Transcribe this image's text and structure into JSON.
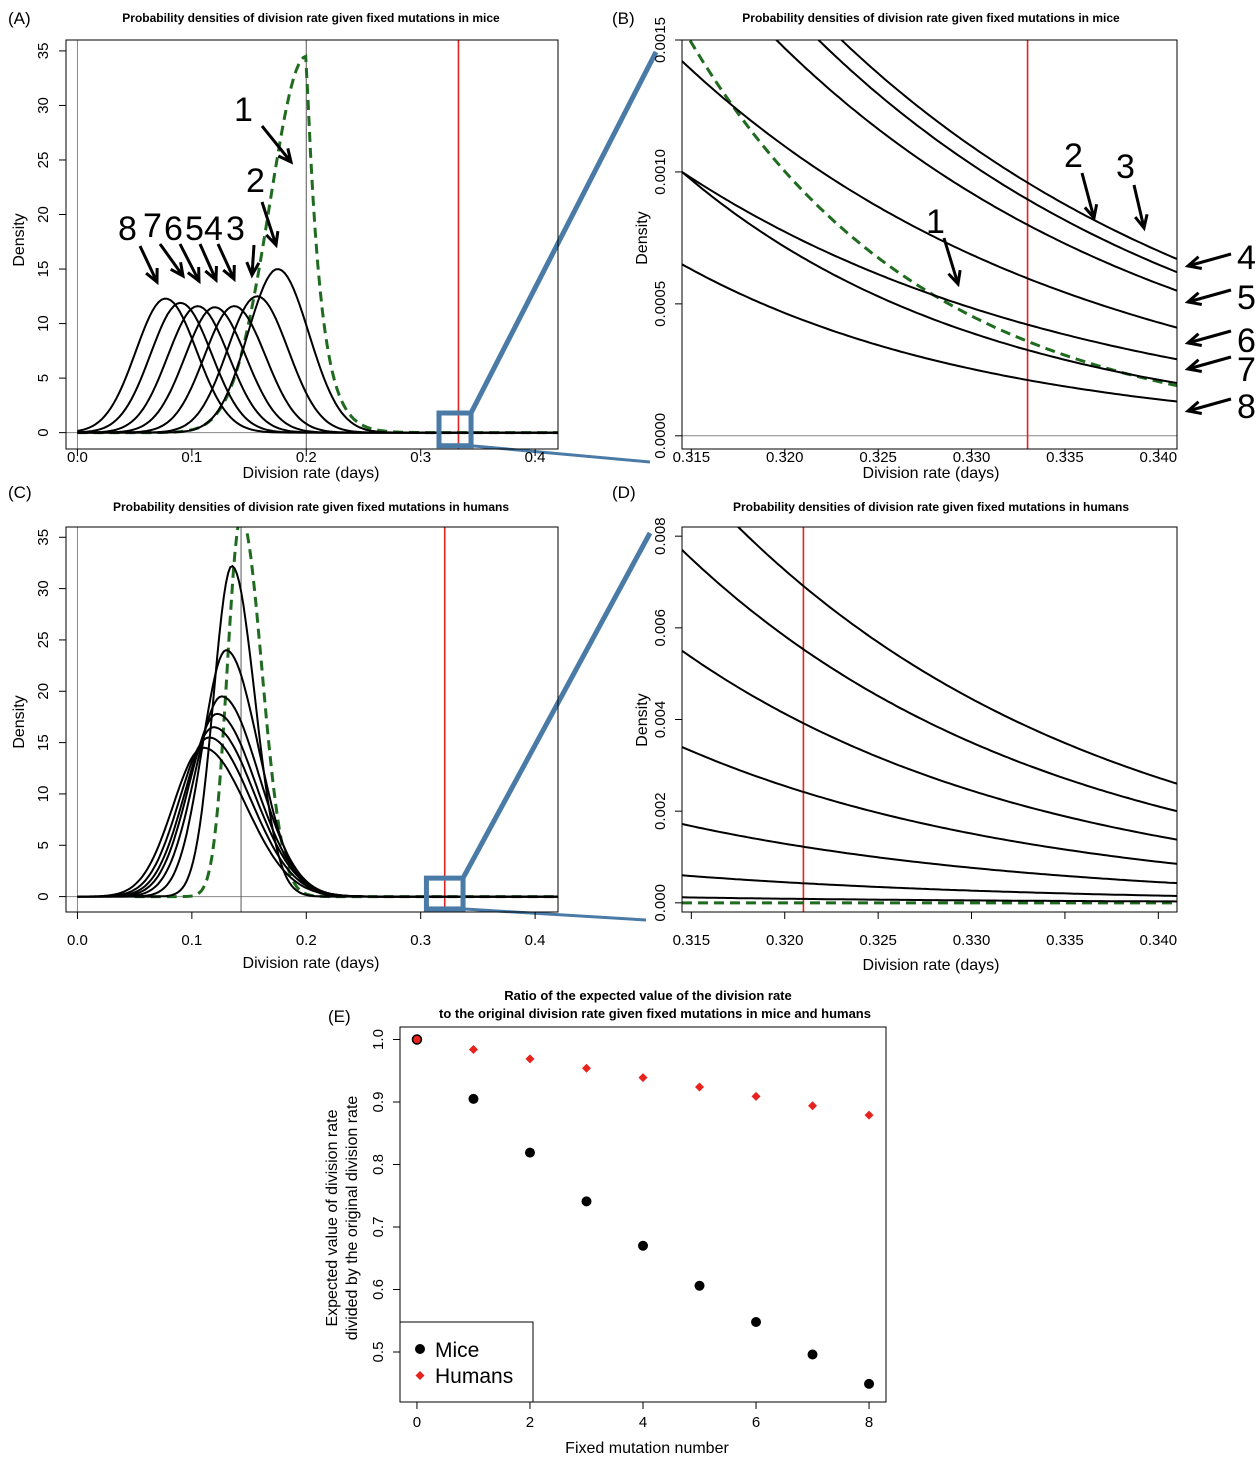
{
  "chart_data": [
    {
      "panel": "(A)",
      "type": "line",
      "title": "Probability densities of division rate given fixed mutations in mice",
      "xlabel": "Division rate (days)",
      "ylabel": "Density",
      "xlim": [
        -0.01,
        0.42
      ],
      "ylim": [
        -1.5,
        36
      ],
      "xticks": [
        "0.0",
        "0.1",
        "0.2",
        "0.3",
        "0.4"
      ],
      "yticks": [
        "0",
        "5",
        "10",
        "15",
        "20",
        "25",
        "30",
        "35"
      ],
      "reference_lines": [
        {
          "x": 0.2,
          "color": "#666666"
        },
        {
          "x": 0.333,
          "color": "#e8231e"
        }
      ],
      "series": [
        {
          "label": "1",
          "style": "dashed",
          "color": "#1f6b1f",
          "peak_x": 0.2,
          "peak_y": 34.5
        },
        {
          "label": "2",
          "peak_x": 0.175,
          "peak_y": 15.0
        },
        {
          "label": "3",
          "peak_x": 0.157,
          "peak_y": 12.5
        },
        {
          "label": "4",
          "peak_x": 0.137,
          "peak_y": 11.6
        },
        {
          "label": "5",
          "peak_x": 0.12,
          "peak_y": 11.5
        },
        {
          "label": "6",
          "peak_x": 0.105,
          "peak_y": 11.6
        },
        {
          "label": "7",
          "peak_x": 0.09,
          "peak_y": 11.9
        },
        {
          "label": "8",
          "peak_x": 0.077,
          "peak_y": 12.3
        }
      ],
      "zoom_box": {
        "x": [
          0.316,
          0.344
        ],
        "y": [
          -1.2,
          1.8
        ]
      },
      "callouts": [
        "1",
        "2",
        "3",
        "4",
        "5",
        "6",
        "7",
        "8"
      ],
      "grid": false
    },
    {
      "panel": "(B)",
      "type": "line",
      "title": "Probability densities of division rate given fixed mutations in mice",
      "xlabel": "Division rate (days)",
      "ylabel": "Density",
      "xlim": [
        0.3145,
        0.341
      ],
      "ylim": [
        -5e-05,
        0.0015
      ],
      "xticks": [
        "0.315",
        "0.320",
        "0.325",
        "0.330",
        "0.335",
        "0.340"
      ],
      "yticks": [
        "0.0000",
        "0.0005",
        "0.0010",
        "0.0015"
      ],
      "reference_lines": [
        {
          "x": 0.333,
          "color": "#e8231e"
        }
      ],
      "series": [
        {
          "label": "1",
          "style": "dashed",
          "color": "#1f6b1f",
          "y_start": 0.00155,
          "y_at_ref": 0.00036,
          "y_end": 0.00019
        },
        {
          "label": "2",
          "y_start": 0.0022,
          "y_at_ref": 0.00104,
          "y_end": 0.00067
        },
        {
          "label": "3",
          "y_start": 0.0021,
          "y_at_ref": 0.00098,
          "y_end": 0.00062
        },
        {
          "label": "4",
          "y_start": 0.0019,
          "y_at_ref": 0.00087,
          "y_end": 0.00055
        },
        {
          "label": "5",
          "y_start": 0.00142,
          "y_at_ref": 0.00062,
          "y_end": 0.00041
        },
        {
          "label": "6",
          "y_start": 0.001,
          "y_at_ref": 0.00044,
          "y_end": 0.00029
        },
        {
          "label": "7",
          "y_start": 0.001,
          "y_at_ref": 0.00029,
          "y_end": 0.0002
        },
        {
          "label": "8",
          "y_start": 0.00065,
          "y_at_ref": 0.0002,
          "y_end": 0.00013
        }
      ],
      "callouts": [
        "1",
        "2",
        "3",
        "4",
        "5",
        "6",
        "7",
        "8"
      ],
      "grid": false
    },
    {
      "panel": "(C)",
      "type": "line",
      "title": "Probability densities of division rate given fixed mutations in humans",
      "xlabel": "Division rate (days)",
      "ylabel": "Density",
      "xlim": [
        -0.01,
        0.42
      ],
      "ylim": [
        -1.5,
        36
      ],
      "xticks": [
        "0.0",
        "0.1",
        "0.2",
        "0.3",
        "0.4"
      ],
      "yticks": [
        "0",
        "5",
        "10",
        "15",
        "20",
        "25",
        "30",
        "35"
      ],
      "reference_lines": [
        {
          "x": 0.143,
          "color": "#666666"
        },
        {
          "x": 0.321,
          "color": "#e8231e"
        }
      ],
      "series": [
        {
          "label": "1",
          "style": "dashed",
          "color": "#1f6b1f",
          "peak_x": 0.143,
          "peak_y": 37.0
        },
        {
          "label": "2",
          "peak_x": 0.135,
          "peak_y": 32.2
        },
        {
          "label": "3",
          "peak_x": 0.13,
          "peak_y": 24.0
        },
        {
          "label": "4",
          "peak_x": 0.126,
          "peak_y": 19.5
        },
        {
          "label": "5",
          "peak_x": 0.122,
          "peak_y": 17.8
        },
        {
          "label": "6",
          "peak_x": 0.119,
          "peak_y": 16.5
        },
        {
          "label": "7",
          "peak_x": 0.115,
          "peak_y": 15.5
        },
        {
          "label": "8",
          "peak_x": 0.11,
          "peak_y": 14.5
        }
      ],
      "zoom_box": {
        "x": [
          0.305,
          0.337
        ],
        "y": [
          -1.2,
          1.8
        ]
      },
      "grid": false
    },
    {
      "panel": "(D)",
      "type": "line",
      "title": "Probability densities of division rate given fixed mutations in humans",
      "xlabel": "Division rate (days)",
      "ylabel": "Density",
      "xlim": [
        0.3145,
        0.341
      ],
      "ylim": [
        -0.0002,
        0.0082
      ],
      "xticks": [
        "0.315",
        "0.320",
        "0.325",
        "0.330",
        "0.335",
        "0.340"
      ],
      "yticks": [
        "0.000",
        "0.002",
        "0.004",
        "0.006",
        "0.008"
      ],
      "reference_lines": [
        {
          "x": 0.321,
          "color": "#e8231e"
        }
      ],
      "series": [
        {
          "label": "1",
          "style": "dashed",
          "color": "#1f6b1f",
          "y_start": 0.0,
          "y_end": 0.0
        },
        {
          "label": "2",
          "y_start": 0.0095,
          "y_at_ref": 0.0066,
          "y_end": 0.0026
        },
        {
          "label": "3",
          "y_start": 0.0077,
          "y_at_ref": 0.0051,
          "y_end": 0.002
        },
        {
          "label": "4",
          "y_start": 0.0055,
          "y_at_ref": 0.0036,
          "y_end": 0.00138
        },
        {
          "label": "5",
          "y_start": 0.0034,
          "y_at_ref": 0.00225,
          "y_end": 0.00085
        },
        {
          "label": "6",
          "y_start": 0.00172,
          "y_at_ref": 0.00114,
          "y_end": 0.00043
        },
        {
          "label": "7",
          "y_start": 0.0006,
          "y_at_ref": 0.0004,
          "y_end": 0.00015
        },
        {
          "label": "8",
          "y_start": 0.00012,
          "y_at_ref": 8e-05,
          "y_end": 3e-05
        }
      ],
      "grid": false
    },
    {
      "panel": "(E)",
      "type": "scatter",
      "title": "Ratio of the expected value of the division rate\nto the original division rate given fixed mutations in mice and humans",
      "title_lines": [
        "Ratio of the expected value of the division rate",
        "to the original division rate given fixed mutations in mice and humans"
      ],
      "xlabel": "Fixed mutation number",
      "ylabel_lines": [
        "Expected value of division rate",
        "divided by the original division rate"
      ],
      "xlim": [
        -0.3,
        8.3
      ],
      "ylim": [
        0.42,
        1.02
      ],
      "xticks": [
        "0",
        "2",
        "4",
        "6",
        "8"
      ],
      "yticks": [
        "0.5",
        "0.6",
        "0.7",
        "0.8",
        "0.9",
        "1.0"
      ],
      "legend": "bottom-left",
      "x": [
        0,
        1,
        2,
        3,
        4,
        5,
        6,
        7,
        8
      ],
      "series": [
        {
          "name": "Mice",
          "marker": "circle",
          "color": "#000000",
          "values": [
            1.0,
            0.905,
            0.819,
            0.741,
            0.67,
            0.606,
            0.548,
            0.496,
            0.449
          ]
        },
        {
          "name": "Humans",
          "marker": "diamond",
          "color": "#e8231e",
          "values": [
            1.0,
            0.984,
            0.969,
            0.954,
            0.939,
            0.924,
            0.909,
            0.894,
            0.879
          ]
        }
      ],
      "grid": false
    }
  ]
}
